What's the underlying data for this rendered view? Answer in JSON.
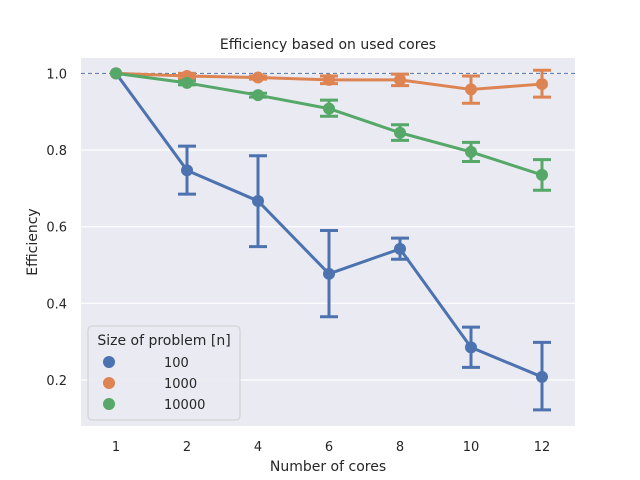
{
  "chart_data": {
    "type": "line",
    "title": "Efficiency based on used cores",
    "xlabel": "Number of cores",
    "ylabel": "Efficiency",
    "categories": [
      "1",
      "2",
      "4",
      "6",
      "8",
      "10",
      "12"
    ],
    "ylim": [
      0.08,
      1.04
    ],
    "yticks": [
      0.2,
      0.4,
      0.6,
      0.8,
      1.0
    ],
    "ytick_labels": [
      "0.2",
      "0.4",
      "0.6",
      "0.8",
      "1.0"
    ],
    "grid": true,
    "reference_line": {
      "y": 1.0,
      "style": "dashed",
      "color": "#4c72b0"
    },
    "legend": {
      "title": "Size of problem [n]",
      "placement": "lower-left"
    },
    "series": [
      {
        "name": "100",
        "color": "#4c72b0",
        "values": [
          1.0,
          0.747,
          0.667,
          0.477,
          0.542,
          0.285,
          0.208
        ],
        "err_low": [
          1.0,
          0.685,
          0.548,
          0.365,
          0.515,
          0.233,
          0.122
        ],
        "err_high": [
          1.0,
          0.81,
          0.785,
          0.59,
          0.57,
          0.338,
          0.298
        ]
      },
      {
        "name": "1000",
        "color": "#dd8452",
        "values": [
          1.0,
          0.993,
          0.989,
          0.983,
          0.983,
          0.958,
          0.972
        ],
        "err_low": [
          1.0,
          0.986,
          0.985,
          0.973,
          0.968,
          0.922,
          0.938
        ],
        "err_high": [
          1.0,
          1.0,
          0.993,
          0.993,
          0.998,
          0.993,
          1.008
        ]
      },
      {
        "name": "10000",
        "color": "#55a868",
        "values": [
          1.0,
          0.975,
          0.943,
          0.908,
          0.845,
          0.795,
          0.735
        ],
        "err_low": [
          1.0,
          0.97,
          0.938,
          0.888,
          0.825,
          0.77,
          0.695
        ],
        "err_high": [
          1.0,
          0.98,
          0.948,
          0.93,
          0.866,
          0.82,
          0.775
        ]
      }
    ]
  }
}
